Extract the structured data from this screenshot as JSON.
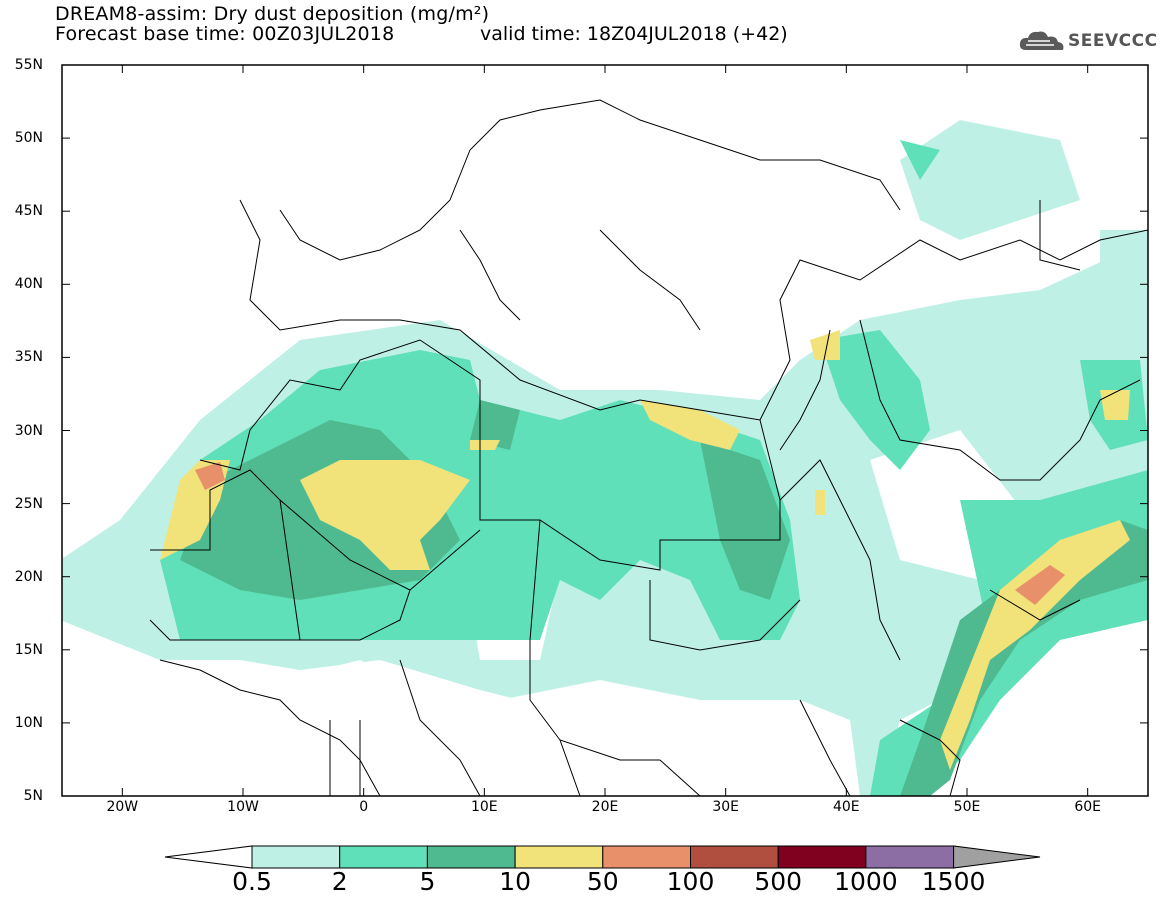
{
  "title_line1": "DREAM8-assim: Dry dust deposition (mg/m²)",
  "title_line2": "Forecast base time: 00Z03JUL2018",
  "valid_time": "valid time: 18Z04JUL2018 (+42)",
  "logo": {
    "text": "SEEVCCC",
    "icon": "cloud-icon"
  },
  "map": {
    "lon_range": [
      -25,
      65
    ],
    "lat_range": [
      5,
      55
    ],
    "lat_labels": [
      "55N",
      "50N",
      "45N",
      "40N",
      "35N",
      "30N",
      "25N",
      "20N",
      "15N",
      "10N",
      "5N"
    ],
    "lon_labels": [
      "20W",
      "10W",
      "0",
      "10E",
      "20E",
      "30E",
      "40E",
      "50E",
      "60E"
    ]
  },
  "colorbar": {
    "levels": [
      "0.5",
      "2",
      "5",
      "10",
      "50",
      "100",
      "500",
      "1000",
      "1500"
    ],
    "colors": [
      "#bff0e6",
      "#5fe0b8",
      "#4fba90",
      "#f2e27a",
      "#e8906a",
      "#b04f40",
      "#800020",
      "#8c6ea4",
      "#a0a0a0"
    ]
  }
}
